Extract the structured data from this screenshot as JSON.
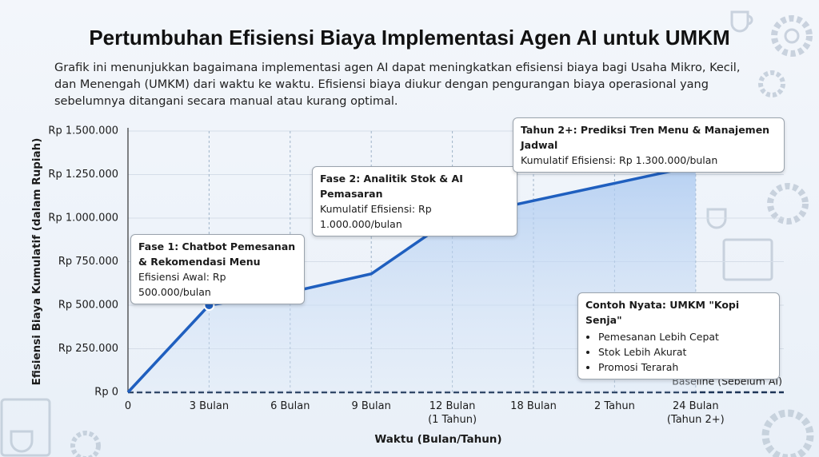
{
  "chart_data": {
    "type": "line",
    "title": "Pertumbuhan Efisiensi Biaya Implementasi Agen AI untuk UMKM",
    "subtitle": "Grafik ini menunjukkan bagaimana implementasi agen AI dapat meningkatkan efisiensi biaya bagi Usaha Mikro, Kecil, dan Menengah (UMKM) dari waktu ke waktu. Efisiensi biaya diukur dengan pengurangan biaya operasional yang sebelumnya ditangani secara manual atau kurang optimal.",
    "x_label": "Waktu (Bulan/Tahun)",
    "y_label": "Efisiensi Biaya Kumulatif (dalam Rupiah)",
    "categories": [
      "0",
      "3 Bulan",
      "6 Bulan",
      "9 Bulan",
      "12 Bulan\n(1 Tahun)",
      "18 Bulan",
      "2 Tahun",
      "24 Bulan\n(Tahun 2+)"
    ],
    "series": [
      {
        "name": "Efisiensi Biaya",
        "color": "#1f5fbf",
        "values": [
          0,
          500000,
          575000,
          680000,
          1000000,
          1100000,
          1200000,
          1300000
        ]
      }
    ],
    "ylim": [
      0,
      1500000
    ],
    "yticks": [
      {
        "value": 0,
        "label": "Rp 0"
      },
      {
        "value": 250000,
        "label": "Rp 250.000"
      },
      {
        "value": 500000,
        "label": "Rp 500.000"
      },
      {
        "value": 750000,
        "label": "Rp 750.000"
      },
      {
        "value": 1000000,
        "label": "Rp 1.000.000"
      },
      {
        "value": 1250000,
        "label": "Rp 1.250.000"
      },
      {
        "value": 1500000,
        "label": "Rp 1.500.000"
      }
    ],
    "grid": true,
    "baseline": {
      "value": 0,
      "label": "Baseline (Sebelum AI)"
    },
    "annotations": [
      {
        "title": "Fase 1: Chatbot Pemesanan & Rekomendasi Menu",
        "text": "Efisiensi Awal: Rp 500.000/bulan"
      },
      {
        "title": "Fase 2: Analitik Stok & AI Pemasaran",
        "text": "Kumulatif Efisiensi: Rp 1.000.000/bulan"
      },
      {
        "title": "Tahun 2+: Prediksi Tren Menu & Manajemen Jadwal",
        "text": "Kumulatif Efisiensi: Rp 1.300.000/bulan"
      }
    ],
    "example": {
      "title": "Contoh Nyata: UMKM \"Kopi Senja\"",
      "items": [
        "Pemesanan Lebih Cepat",
        "Stok Lebih Akurat",
        "Promosi Terarah"
      ]
    }
  }
}
